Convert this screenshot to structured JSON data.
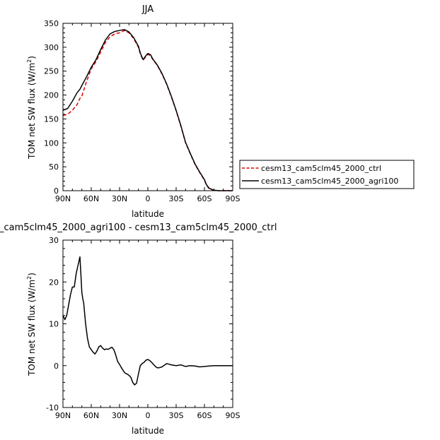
{
  "chart_data": [
    {
      "type": "line",
      "title": "JJA",
      "xlabel": "latitude",
      "ylabel": "TOM net SW flux (W/m",
      "ylabel_sup": "2",
      "ylabel_close": ")",
      "x_ticklabels": [
        "90N",
        "60N",
        "30N",
        "0",
        "30S",
        "60S",
        "90S"
      ],
      "x_tickvalues": [
        90,
        60,
        30,
        0,
        -30,
        -60,
        -90
      ],
      "xlim": [
        90,
        -90
      ],
      "ylim": [
        0,
        350
      ],
      "y_ticks": [
        0,
        50,
        100,
        150,
        200,
        250,
        300,
        350
      ],
      "legend_position": "right",
      "series": [
        {
          "name": "cesm13_cam5clm45_2000_ctrl",
          "color": "#dd0000",
          "dash": "dashed",
          "x": [
            90,
            85,
            80,
            75,
            72,
            70,
            65,
            60,
            55,
            50,
            45,
            40,
            35,
            30,
            25,
            20,
            15,
            10,
            8,
            5,
            3,
            0,
            -3,
            -5,
            -10,
            -15,
            -20,
            -25,
            -30,
            -35,
            -40,
            -45,
            -50,
            -55,
            -60,
            -62,
            -65,
            -70,
            -75,
            -80,
            -85,
            -90
          ],
          "values": [
            157,
            160,
            168,
            180,
            193,
            198,
            228,
            255,
            270,
            290,
            310,
            322,
            328,
            330,
            335,
            330,
            318,
            300,
            286,
            273,
            278,
            285,
            282,
            275,
            262,
            244,
            222,
            196,
            167,
            135,
            100,
            77,
            55,
            38,
            22,
            12,
            4,
            1,
            0,
            0,
            0,
            0
          ]
        },
        {
          "name": "cesm13_cam5clm45_2000_agri100",
          "color": "#000000",
          "dash": "solid",
          "x": [
            90,
            85,
            80,
            75,
            72,
            70,
            65,
            60,
            55,
            50,
            45,
            40,
            35,
            30,
            25,
            20,
            15,
            10,
            8,
            5,
            3,
            0,
            -3,
            -5,
            -10,
            -15,
            -20,
            -25,
            -30,
            -35,
            -40,
            -45,
            -50,
            -55,
            -60,
            -62,
            -65,
            -70,
            -75,
            -80,
            -85,
            -90
          ],
          "values": [
            168,
            172,
            187,
            205,
            212,
            220,
            238,
            258,
            274,
            295,
            315,
            328,
            333,
            335,
            337,
            332,
            320,
            302,
            288,
            274,
            280,
            287,
            284,
            276,
            263,
            245,
            223,
            197,
            168,
            136,
            101,
            78,
            56,
            39,
            23,
            13,
            5,
            1,
            0,
            0,
            0,
            0
          ]
        }
      ]
    },
    {
      "type": "line",
      "title": "_cam5clm45_2000_agri100 - cesm13_cam5clm45_2000_ctrl",
      "xlabel": "latitude",
      "ylabel": "TOM net SW flux (W/m",
      "ylabel_sup": "2",
      "ylabel_close": ")",
      "x_ticklabels": [
        "90N",
        "60N",
        "30N",
        "0",
        "30S",
        "60S",
        "90S"
      ],
      "x_tickvalues": [
        90,
        60,
        30,
        0,
        -30,
        -60,
        -90
      ],
      "xlim": [
        90,
        -90
      ],
      "ylim": [
        -10,
        30
      ],
      "y_ticks": [
        -10,
        0,
        10,
        20,
        30
      ],
      "series": [
        {
          "color": "#000000",
          "dash": "solid",
          "x": [
            90,
            88,
            86,
            84,
            82,
            80,
            78,
            76,
            74,
            72,
            71,
            70,
            69,
            68,
            66,
            64,
            62,
            60,
            58,
            56,
            54,
            52,
            50,
            48,
            46,
            44,
            42,
            40,
            38,
            36,
            34,
            32,
            30,
            28,
            26,
            24,
            22,
            20,
            18,
            16,
            14,
            12,
            10,
            8,
            6,
            4,
            2,
            0,
            -2,
            -4,
            -6,
            -8,
            -10,
            -12,
            -15,
            -20,
            -25,
            -30,
            -35,
            -40,
            -45,
            -50,
            -55,
            -60,
            -65,
            -70,
            -75,
            -80,
            -85,
            -90
          ],
          "values": [
            12,
            11,
            12,
            14.5,
            17,
            18.8,
            18.8,
            22,
            24,
            26,
            22,
            17.5,
            16,
            15,
            10,
            6.5,
            4.5,
            3.8,
            3.2,
            2.8,
            3.5,
            4.5,
            4.8,
            4.2,
            3.8,
            4.0,
            3.9,
            4.2,
            4.4,
            3.8,
            2.5,
            1.0,
            0.3,
            -0.5,
            -1.2,
            -1.8,
            -2.0,
            -2.3,
            -2.8,
            -4.0,
            -4.6,
            -4.2,
            -2.0,
            0.0,
            0.5,
            0.8,
            1.3,
            1.5,
            1.2,
            0.8,
            0.3,
            -0.2,
            -0.5,
            -0.5,
            -0.3,
            0.5,
            0.2,
            0.0,
            0.2,
            -0.2,
            0.0,
            -0.1,
            -0.3,
            -0.2,
            -0.1,
            0.0,
            0.0,
            0.0,
            0.0,
            0.0
          ]
        }
      ]
    }
  ]
}
